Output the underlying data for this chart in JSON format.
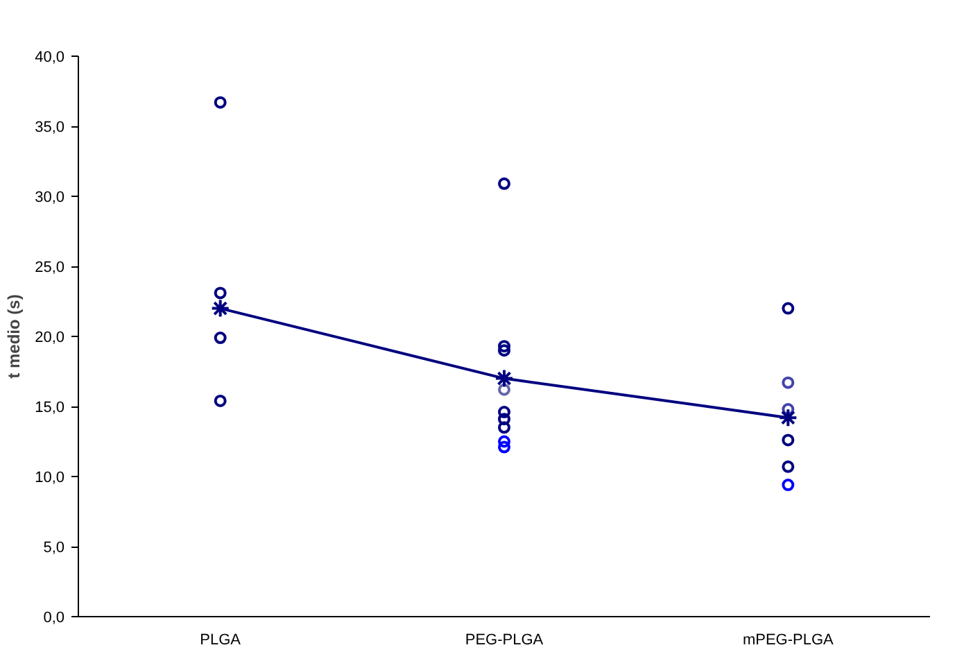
{
  "chart_data": {
    "type": "scatter",
    "ylabel": "t medio (s)",
    "categories": [
      "PLGA",
      "PEG-PLGA",
      "mPEG-PLGA"
    ],
    "series": [
      {
        "marker": "circle",
        "color": "#000080",
        "x": [
          "PLGA",
          "PLGA",
          "PLGA",
          "PLGA",
          "PEG-PLGA",
          "PEG-PLGA",
          "PEG-PLGA",
          "PEG-PLGA",
          "PEG-PLGA",
          "PEG-PLGA",
          "PEG-PLGA",
          "PEG-PLGA",
          "PEG-PLGA",
          "mPEG-PLGA",
          "mPEG-PLGA",
          "mPEG-PLGA",
          "mPEG-PLGA",
          "mPEG-PLGA",
          "mPEG-PLGA"
        ],
        "values": [
          36.7,
          23.1,
          19.9,
          15.4,
          30.9,
          19.3,
          19.0,
          16.2,
          14.6,
          14.1,
          13.5,
          12.5,
          12.1,
          22.0,
          16.7,
          14.8,
          12.6,
          10.7,
          9.4
        ],
        "colors": [
          "#000080",
          "#000080",
          "#000080",
          "#000080",
          "#000080",
          "#000080",
          "#000080",
          "#6666aa",
          "#000080",
          "#000080",
          "#000080",
          "#0000ff",
          "#0000ff",
          "#000080",
          "#4444aa",
          "#4444aa",
          "#000080",
          "#000080",
          "#0000ff"
        ]
      },
      {
        "type": "line",
        "marker": "cross",
        "color": "#000080",
        "values": [
          22.0,
          17.0,
          14.2
        ]
      }
    ],
    "ylim": [
      0,
      40
    ],
    "yticks": [
      {
        "value": 0,
        "label": "0,0"
      },
      {
        "value": 5,
        "label": "5,0"
      },
      {
        "value": 10,
        "label": "10,0"
      },
      {
        "value": 15,
        "label": "15,0"
      },
      {
        "value": 20,
        "label": "20,0"
      },
      {
        "value": 25,
        "label": "25,0"
      },
      {
        "value": 30,
        "label": "30,0"
      },
      {
        "value": 35,
        "label": "35,0"
      },
      {
        "value": 40,
        "label": "40,0"
      }
    ],
    "grid": false
  }
}
